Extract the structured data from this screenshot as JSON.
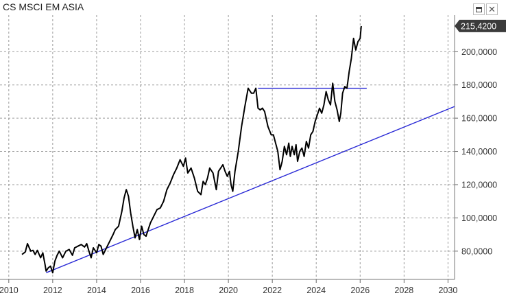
{
  "window": {
    "title": "CS MSCI EM ASIA",
    "maximize_icon": "maximize-icon",
    "close_icon": "close-icon",
    "close_glyph": "✕"
  },
  "chart_data": {
    "type": "line",
    "title": "CS MSCI EM ASIA",
    "xlabel": "",
    "ylabel": "",
    "xlim": [
      2009.6,
      2030.3
    ],
    "ylim": [
      63000,
      222000
    ],
    "x_ticks": [
      2010,
      2012,
      2014,
      2016,
      2018,
      2020,
      2022,
      2024,
      2026,
      2028,
      2030
    ],
    "y_ticks": [
      80000,
      100000,
      120000,
      140000,
      160000,
      180000,
      200000
    ],
    "y_tick_labels": [
      "80,0000",
      "100,0000",
      "120,0000",
      "140,0000",
      "160,0000",
      "180,0000",
      "200,0000"
    ],
    "grid": true,
    "last_value": 215420,
    "last_value_label": "215,4200",
    "colors": {
      "price": "#000000",
      "trendline": "#2a2ad6",
      "label_bg": "#3b3b3b",
      "label_text": "#ffffff"
    },
    "series": [
      {
        "x": [
          2010.6,
          2010.75,
          2010.85,
          2011.0,
          2011.1,
          2011.2,
          2011.3,
          2011.45,
          2011.55,
          2011.65,
          2011.7,
          2011.8,
          2011.9,
          2012.0,
          2012.1,
          2012.2,
          2012.3,
          2012.45,
          2012.6,
          2012.75,
          2012.9,
          2013.0,
          2013.15,
          2013.3,
          2013.45,
          2013.55,
          2013.65,
          2013.75,
          2013.85,
          2014.0,
          2014.1,
          2014.2,
          2014.3,
          2014.45,
          2014.6,
          2014.75,
          2014.85,
          2015.0,
          2015.15,
          2015.25,
          2015.35,
          2015.45,
          2015.55,
          2015.65,
          2015.75,
          2015.85,
          2015.95,
          2016.05,
          2016.15,
          2016.25,
          2016.35,
          2016.45,
          2016.6,
          2016.75,
          2016.9,
          2017.05,
          2017.2,
          2017.35,
          2017.5,
          2017.65,
          2017.8,
          2017.95,
          2018.05,
          2018.15,
          2018.3,
          2018.45,
          2018.6,
          2018.75,
          2018.85,
          2018.95,
          2019.05,
          2019.15,
          2019.3,
          2019.45,
          2019.55,
          2019.65,
          2019.75,
          2019.85,
          2019.95,
          2020.05,
          2020.12,
          2020.2,
          2020.3,
          2020.45,
          2020.6,
          2020.75,
          2020.9,
          2021.05,
          2021.15,
          2021.25,
          2021.35,
          2021.45,
          2021.55,
          2021.65,
          2021.8,
          2021.95,
          2022.05,
          2022.15,
          2022.25,
          2022.35,
          2022.45,
          2022.55,
          2022.65,
          2022.75,
          2022.82,
          2022.9,
          2023.0,
          2023.08,
          2023.15,
          2023.25,
          2023.35,
          2023.45,
          2023.55,
          2023.65,
          2023.75,
          2023.85,
          2023.95,
          2024.05,
          2024.15,
          2024.25,
          2024.35,
          2024.45,
          2024.55,
          2024.65,
          2024.75,
          2024.85,
          2024.95,
          2025.05,
          2025.12,
          2025.2,
          2025.3,
          2025.4,
          2025.5,
          2025.6,
          2025.7,
          2025.8,
          2025.9,
          2026.0,
          2026.05
        ],
        "y": [
          78000,
          79500,
          84500,
          80000,
          80500,
          78000,
          80500,
          76000,
          79000,
          72000,
          68000,
          70000,
          71000,
          67000,
          74000,
          77500,
          80000,
          76000,
          80000,
          81000,
          77500,
          82000,
          83000,
          84000,
          82500,
          84500,
          80000,
          76000,
          82000,
          79000,
          84000,
          83000,
          78000,
          82000,
          86000,
          90000,
          93000,
          95000,
          104000,
          112000,
          117000,
          113000,
          103000,
          95000,
          88000,
          93000,
          87000,
          95000,
          90000,
          89000,
          93000,
          97000,
          101000,
          105000,
          106000,
          110000,
          117000,
          121000,
          126000,
          130000,
          135000,
          131000,
          136000,
          127000,
          130000,
          124000,
          116000,
          114000,
          122000,
          120000,
          124000,
          130000,
          127000,
          117000,
          128000,
          130000,
          132000,
          128000,
          125000,
          128000,
          120000,
          116000,
          128000,
          140000,
          155000,
          167000,
          178000,
          175000,
          175000,
          178000,
          166000,
          165000,
          166000,
          164000,
          155000,
          150000,
          150000,
          145000,
          140000,
          129000,
          134000,
          143000,
          138000,
          145000,
          137000,
          143000,
          138000,
          144000,
          134000,
          140000,
          142000,
          137000,
          146000,
          142000,
          150000,
          152000,
          158000,
          162000,
          166000,
          163000,
          168000,
          176000,
          171000,
          168000,
          181000,
          170000,
          165000,
          158000,
          163000,
          175000,
          179000,
          178000,
          188000,
          196000,
          208000,
          201000,
          206000,
          208000,
          215420
        ]
      }
    ],
    "trendlines": [
      {
        "x": [
          2011.7,
          2030.3
        ],
        "y": [
          67000,
          167000
        ]
      },
      {
        "x": [
          2021.35,
          2026.3
        ],
        "y": [
          178000,
          178000
        ]
      }
    ]
  }
}
